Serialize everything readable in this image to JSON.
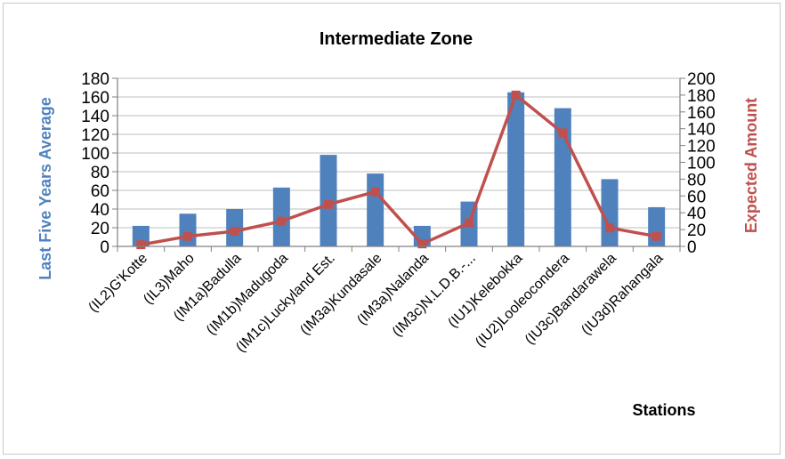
{
  "chart_data": {
    "type": "bar",
    "title": "Intermediate Zone",
    "xlabel": "Stations",
    "ylabel": "Last Five Years Average",
    "y2label": "Expected Amount",
    "categories": [
      "(IL2)G'Kotte",
      "(IL3)Maho",
      "(IM1a)Badulla",
      "(IM1b)Madugoda",
      "(IM1c)Luckyland Est.",
      "(IM3a)Kundasale",
      "(IM3a)Nalanda",
      "(IM3c)N.L.D.B.-...",
      "(IU1)Kelebokka",
      "(IU2)Looleocondera",
      "(IU3c)Bandarawela",
      "(IU3d)Rahangala"
    ],
    "series": [
      {
        "name": "Last Five Years Average",
        "type": "bar",
        "axis": "left",
        "color": "#4f81bd",
        "values": [
          22,
          35,
          40,
          63,
          98,
          78,
          22,
          48,
          165,
          148,
          72,
          42
        ]
      },
      {
        "name": "Expected Amount",
        "type": "line",
        "axis": "right",
        "color": "#c0504d",
        "values": [
          2,
          12,
          18,
          30,
          50,
          65,
          3,
          28,
          180,
          135,
          22,
          12
        ]
      }
    ],
    "ylim": [
      0,
      180
    ],
    "y2lim": [
      0,
      200
    ],
    "yticks": [
      "0",
      "20",
      "40",
      "60",
      "80",
      "100",
      "120",
      "140",
      "160",
      "180"
    ],
    "y2ticks": [
      "0",
      "20",
      "40",
      "60",
      "80",
      "100",
      "120",
      "140",
      "160",
      "180",
      "200"
    ],
    "grid": true,
    "legend": "none"
  }
}
